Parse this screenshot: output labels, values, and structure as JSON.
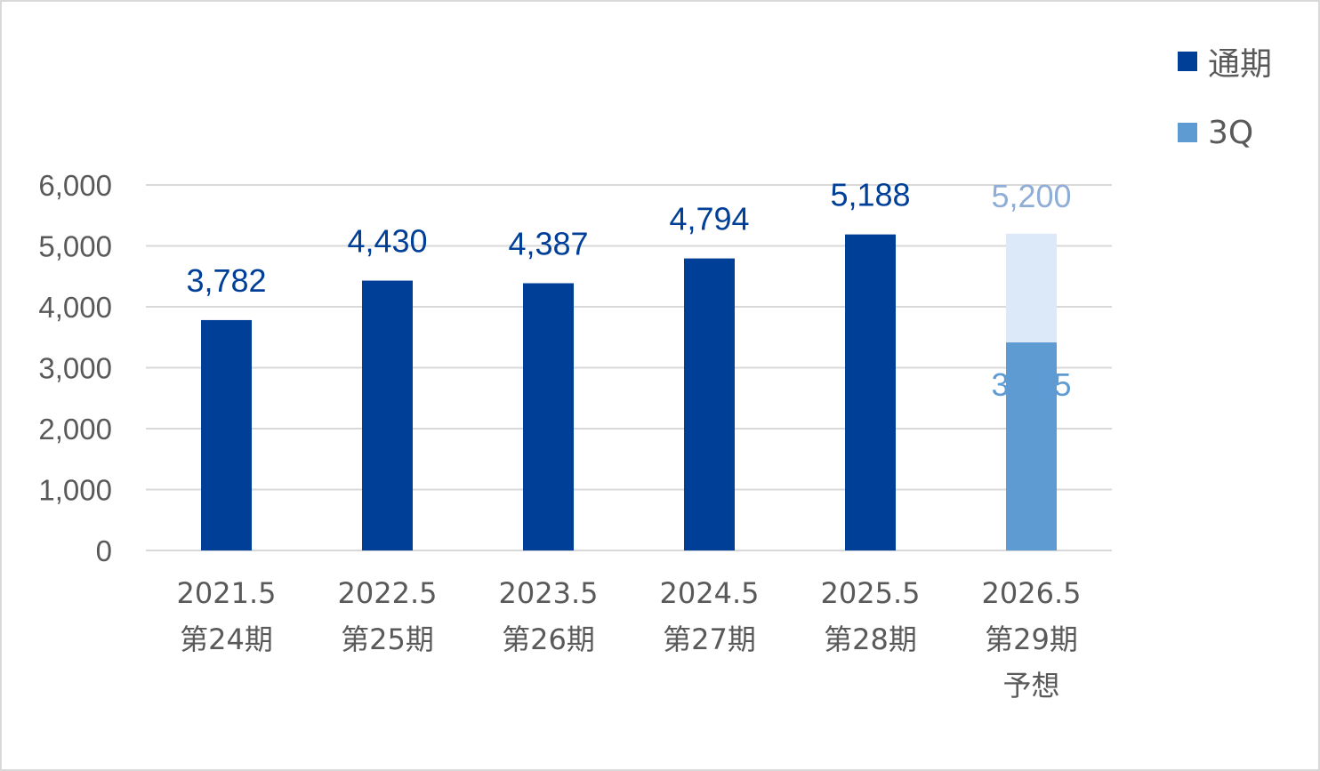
{
  "chart_data": {
    "type": "bar",
    "categories": [
      [
        "2021.5",
        "第24期"
      ],
      [
        "2022.5",
        "第25期"
      ],
      [
        "2023.5",
        "第26期"
      ],
      [
        "2024.5",
        "第27期"
      ],
      [
        "2025.5",
        "第28期"
      ],
      [
        "2026.5",
        "第29期",
        "予想"
      ]
    ],
    "series": [
      {
        "name": "通期",
        "color": "#003F98",
        "values": [
          3782,
          4430,
          4387,
          4794,
          5188,
          null
        ],
        "labels": [
          "3,782",
          "4,430",
          "4,387",
          "4,794",
          "5,188",
          ""
        ]
      },
      {
        "name": "3Q",
        "color": "#5E9BD3",
        "values": [
          null,
          null,
          null,
          null,
          null,
          3415
        ],
        "labels": [
          "",
          "",
          "",
          "",
          "",
          "3,415"
        ]
      }
    ],
    "forecast": {
      "category_index": 5,
      "value": 5200,
      "label": "5,200",
      "color": "#DCE9F9"
    },
    "yticks": [
      0,
      1000,
      2000,
      3000,
      4000,
      5000,
      6000
    ],
    "ytick_labels": [
      "0",
      "1,000",
      "2,000",
      "3,000",
      "4,000",
      "5,000",
      "6,000"
    ],
    "ylim": [
      0,
      6000
    ],
    "grid": true,
    "legend_position": "top-right",
    "title": "",
    "xlabel": "",
    "ylabel": ""
  },
  "colors": {
    "grid": "#D9D9D9",
    "axis_text": "#595959",
    "forecast_label": "#8FADD6",
    "q3_label": "#5E9BD3"
  }
}
